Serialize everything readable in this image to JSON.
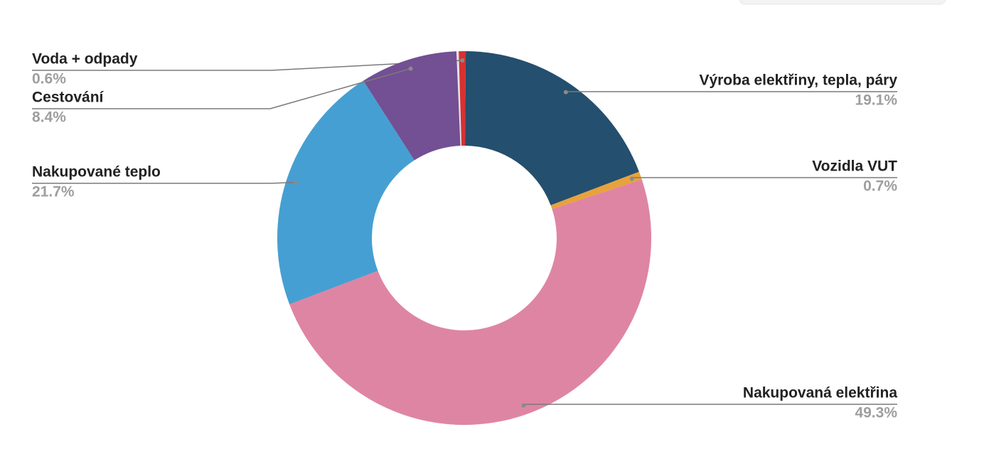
{
  "chart_data": {
    "type": "donut",
    "categories": [
      "Voda + odpady",
      "Výroba elektřiny, tepla, páry",
      "Vozidla VUT",
      "Nakupovaná elektřina",
      "Nakupované teplo",
      "Cestování"
    ],
    "values": [
      0.6,
      19.1,
      0.7,
      49.3,
      21.7,
      8.4
    ],
    "value_labels": [
      "0.6%",
      "19.1%",
      "0.7%",
      "49.3%",
      "21.7%",
      "8.4%"
    ],
    "colors": [
      "#d83131",
      "#244f6e",
      "#e8a23c",
      "#df85a4",
      "#469fd2",
      "#734f93"
    ]
  }
}
